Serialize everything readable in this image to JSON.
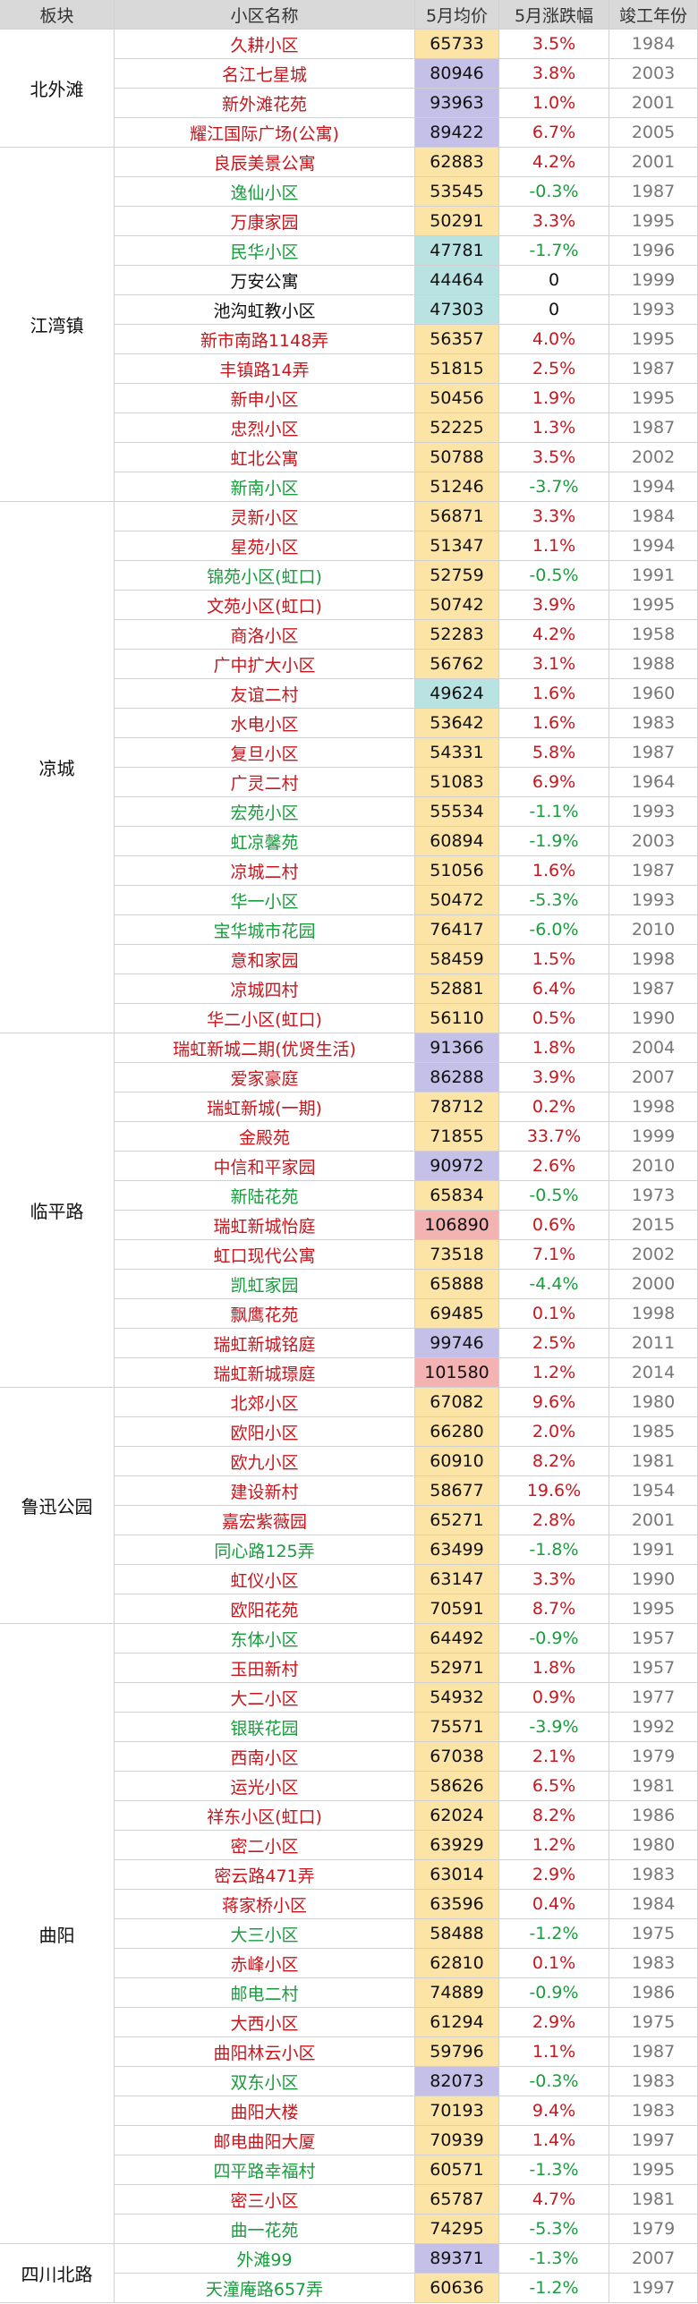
{
  "header": [
    "板块",
    "小区名称",
    "5月均价",
    "5月涨跌幅",
    "竣工年份"
  ],
  "groups": [
    {
      "name": "北外滩",
      "rows": [
        [
          "久耕小区",
          65733,
          "3.5%",
          1984
        ],
        [
          "名江七星城",
          80946,
          "3.8%",
          2003
        ],
        [
          "新外滩花苑",
          93963,
          "1.0%",
          2001
        ],
        [
          "耀江国际广场(公寓)",
          89422,
          "6.7%",
          2005
        ]
      ]
    },
    {
      "name": "江湾镇",
      "rows": [
        [
          "良辰美景公寓",
          62883,
          "4.2%",
          2001
        ],
        [
          "逸仙小区",
          53545,
          "-0.3%",
          1987
        ],
        [
          "万康家园",
          50291,
          "3.3%",
          1995
        ],
        [
          "民华小区",
          47781,
          "-1.7%",
          1996
        ],
        [
          "万安公寓",
          44464,
          0,
          1999
        ],
        [
          "池沟虹教小区",
          47303,
          0,
          1993
        ],
        [
          "新市南路1148弄",
          56357,
          "4.0%",
          1995
        ],
        [
          "丰镇路14弄",
          51815,
          "2.5%",
          1987
        ],
        [
          "新申小区",
          50456,
          "1.9%",
          1995
        ],
        [
          "忠烈小区",
          52225,
          "1.3%",
          1987
        ],
        [
          "虹北公寓",
          50788,
          "3.5%",
          2002
        ],
        [
          "新南小区",
          51246,
          "-3.7%",
          1994
        ]
      ]
    },
    {
      "name": "凉城",
      "rows": [
        [
          "灵新小区",
          56871,
          "3.3%",
          1984
        ],
        [
          "星苑小区",
          51347,
          "1.1%",
          1994
        ],
        [
          "锦苑小区(虹口)",
          52759,
          "-0.5%",
          1991
        ],
        [
          "文苑小区(虹口)",
          50742,
          "3.9%",
          1995
        ],
        [
          "商洛小区",
          52283,
          "4.2%",
          1958
        ],
        [
          "广中扩大小区",
          56762,
          "3.1%",
          1988
        ],
        [
          "友谊二村",
          49624,
          "1.6%",
          1960
        ],
        [
          "水电小区",
          53642,
          "1.6%",
          1983
        ],
        [
          "复旦小区",
          54331,
          "5.8%",
          1987
        ],
        [
          "广灵二村",
          51083,
          "6.9%",
          1964
        ],
        [
          "宏苑小区",
          55534,
          "-1.1%",
          1993
        ],
        [
          "虹凉馨苑",
          60894,
          "-1.9%",
          2003
        ],
        [
          "凉城二村",
          51056,
          "1.6%",
          1987
        ],
        [
          "华一小区",
          50472,
          "-5.3%",
          1993
        ],
        [
          "宝华城市花园",
          76417,
          "-6.0%",
          2010
        ],
        [
          "意和家园",
          58459,
          "1.5%",
          1998
        ],
        [
          "凉城四村",
          52881,
          "6.4%",
          1987
        ],
        [
          "华二小区(虹口)",
          56110,
          "0.5%",
          1990
        ]
      ]
    },
    {
      "name": "临平路",
      "rows": [
        [
          "瑞虹新城二期(优贤生活)",
          91366,
          "1.8%",
          2004
        ],
        [
          "爱家豪庭",
          86288,
          "3.9%",
          2007
        ],
        [
          "瑞虹新城(一期)",
          78712,
          "0.2%",
          1998
        ],
        [
          "金殿苑",
          71855,
          "33.7%",
          1999
        ],
        [
          "中信和平家园",
          90972,
          "2.6%",
          2010
        ],
        [
          "新陆花苑",
          65834,
          "-0.5%",
          1973
        ],
        [
          "瑞虹新城怡庭",
          106890,
          "0.6%",
          2015
        ],
        [
          "虹口现代公寓",
          73518,
          "7.1%",
          2002
        ],
        [
          "凯虹家园",
          65888,
          "-4.4%",
          2000
        ],
        [
          "飘鹰花苑",
          69485,
          "0.1%",
          1998
        ],
        [
          "瑞虹新城铭庭",
          99746,
          "2.5%",
          2011
        ],
        [
          "瑞虹新城璟庭",
          101580,
          "1.2%",
          2014
        ]
      ]
    },
    {
      "name": "鲁迅公园",
      "rows": [
        [
          "北郊小区",
          67082,
          "9.6%",
          1980
        ],
        [
          "欧阳小区",
          66280,
          "2.0%",
          1985
        ],
        [
          "欧九小区",
          60910,
          "8.2%",
          1981
        ],
        [
          "建设新村",
          58677,
          "19.6%",
          1954
        ],
        [
          "嘉宏紫薇园",
          65271,
          "2.8%",
          2001
        ],
        [
          "同心路125弄",
          63499,
          "-1.8%",
          1991
        ],
        [
          "虹仪小区",
          63147,
          "3.3%",
          1990
        ],
        [
          "欧阳花苑",
          70591,
          "8.7%",
          1995
        ]
      ]
    },
    {
      "name": "曲阳",
      "rows": [
        [
          "东体小区",
          64492,
          "-0.9%",
          1957
        ],
        [
          "玉田新村",
          52971,
          "1.8%",
          1957
        ],
        [
          "大二小区",
          54932,
          "0.9%",
          1977
        ],
        [
          "银联花园",
          75571,
          "-3.9%",
          1992
        ],
        [
          "西南小区",
          67038,
          "2.1%",
          1979
        ],
        [
          "运光小区",
          58626,
          "6.5%",
          1981
        ],
        [
          "祥东小区(虹口)",
          62024,
          "8.2%",
          1986
        ],
        [
          "密二小区",
          63929,
          "1.2%",
          1980
        ],
        [
          "密云路471弄",
          63014,
          "2.9%",
          1983
        ],
        [
          "蒋家桥小区",
          63596,
          "0.4%",
          1984
        ],
        [
          "大三小区",
          58488,
          "-1.2%",
          1975
        ],
        [
          "赤峰小区",
          62810,
          "0.1%",
          1983
        ],
        [
          "邮电二村",
          74889,
          "-0.9%",
          1986
        ],
        [
          "大西小区",
          61294,
          "2.9%",
          1975
        ],
        [
          "曲阳林云小区",
          59796,
          "1.1%",
          1987
        ],
        [
          "双东小区",
          82073,
          "-0.3%",
          1983
        ],
        [
          "曲阳大楼",
          70193,
          "9.4%",
          1983
        ],
        [
          "邮电曲阳大厦",
          70939,
          "1.4%",
          1997
        ],
        [
          "四平路幸福村",
          60571,
          "-1.3%",
          1995
        ],
        [
          "密三小区",
          65787,
          "4.7%",
          1981
        ],
        [
          "曲一花苑",
          74295,
          "-5.3%",
          1979
        ]
      ]
    },
    {
      "name": "四川北路",
      "rows": [
        [
          "外滩99",
          89371,
          "-1.3%",
          2007
        ],
        [
          "天潼庵路657弄",
          60636,
          "-1.2%",
          1997
        ]
      ]
    }
  ]
}
